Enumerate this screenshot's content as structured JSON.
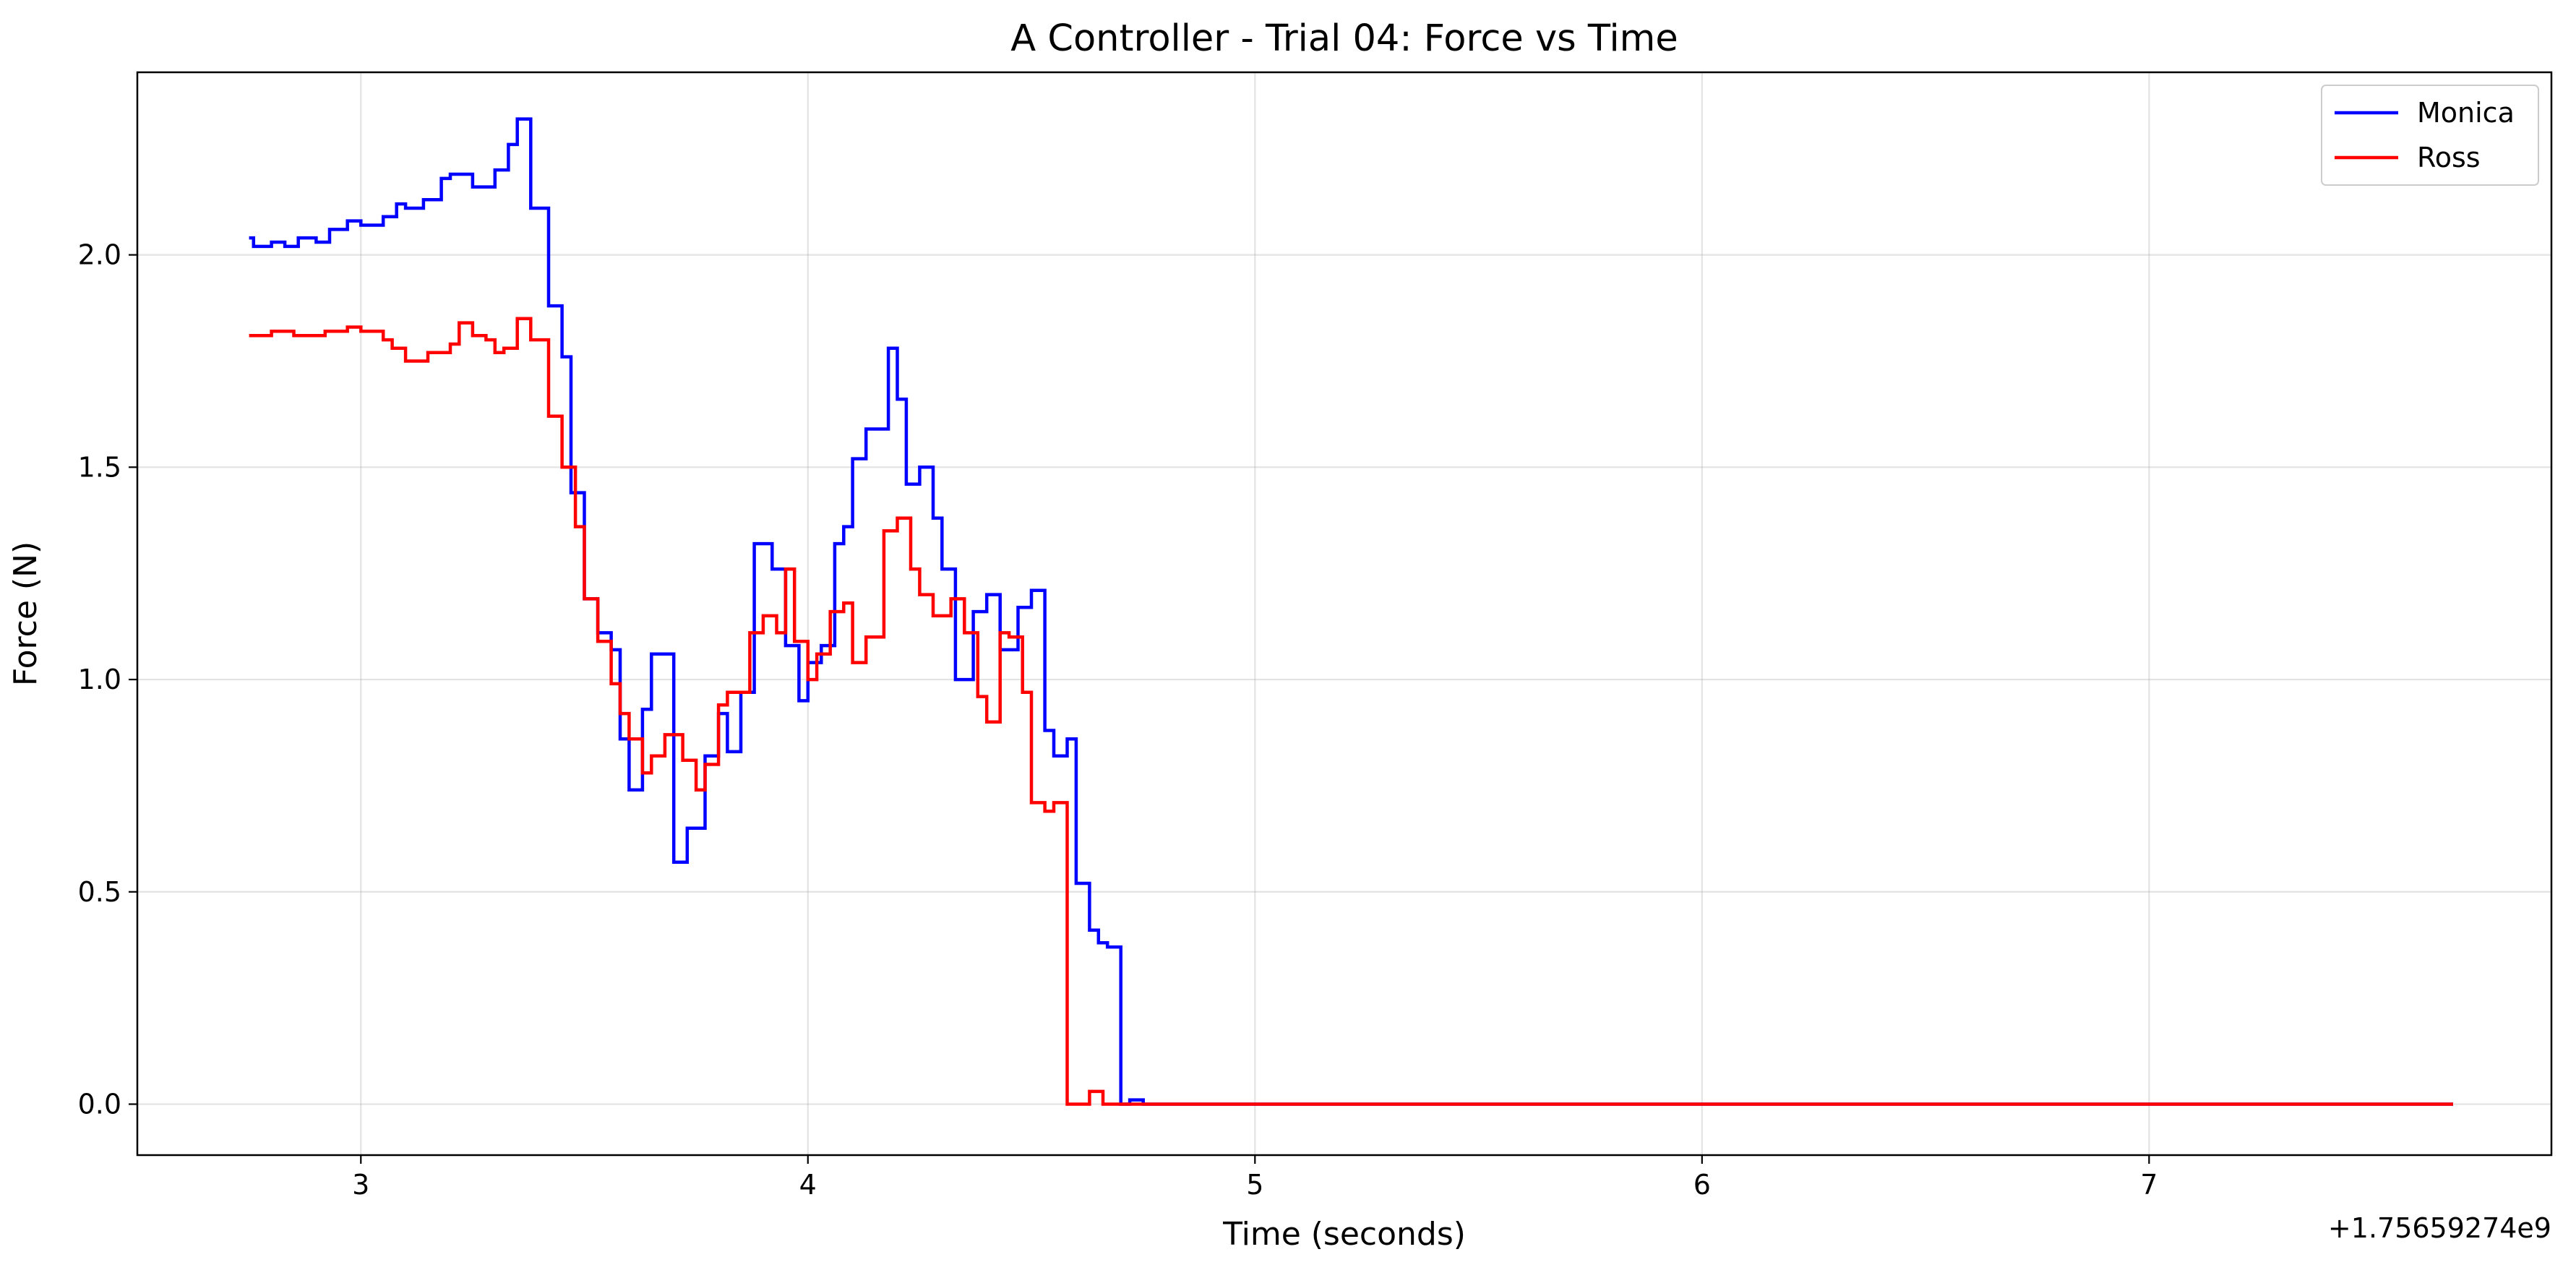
{
  "chart_data": {
    "type": "line",
    "title": "A Controller - Trial 04: Force vs Time",
    "xlabel": "Time (seconds)",
    "ylabel": "Force (N)",
    "x_offset_label": "+1.75659274e9",
    "xlim": [
      2.5,
      7.9
    ],
    "ylim": [
      -0.12,
      2.43
    ],
    "xticks": [
      3,
      4,
      5,
      6,
      7
    ],
    "yticks": [
      0.0,
      0.5,
      1.0,
      1.5,
      2.0
    ],
    "xtick_labels": [
      "3",
      "4",
      "5",
      "6",
      "7"
    ],
    "ytick_labels": [
      "0.0",
      "0.5",
      "1.0",
      "1.5",
      "2.0"
    ],
    "grid": true,
    "legend_position": "top-right",
    "step": "post",
    "series": [
      {
        "name": "Monica",
        "color": "#0000ff",
        "x": [
          2.75,
          2.76,
          2.8,
          2.83,
          2.86,
          2.9,
          2.93,
          2.97,
          3.0,
          3.05,
          3.08,
          3.1,
          3.14,
          3.18,
          3.2,
          3.25,
          3.3,
          3.33,
          3.35,
          3.38,
          3.42,
          3.45,
          3.47,
          3.5,
          3.53,
          3.56,
          3.58,
          3.6,
          3.63,
          3.65,
          3.7,
          3.73,
          3.77,
          3.8,
          3.82,
          3.85,
          3.88,
          3.92,
          3.95,
          3.98,
          4.0,
          4.03,
          4.06,
          4.08,
          4.1,
          4.13,
          4.18,
          4.2,
          4.22,
          4.25,
          4.28,
          4.3,
          4.33,
          4.37,
          4.4,
          4.43,
          4.47,
          4.5,
          4.53,
          4.55,
          4.58,
          4.6,
          4.63,
          4.65,
          4.67,
          4.7,
          4.72,
          4.75,
          4.78,
          4.8,
          4.83,
          4.86,
          4.9,
          4.92,
          5.0,
          5.03,
          7.68
        ],
        "y": [
          2.04,
          2.02,
          2.03,
          2.02,
          2.04,
          2.03,
          2.06,
          2.08,
          2.07,
          2.09,
          2.12,
          2.11,
          2.13,
          2.18,
          2.19,
          2.16,
          2.2,
          2.26,
          2.32,
          2.11,
          1.88,
          1.76,
          1.44,
          1.19,
          1.11,
          1.07,
          0.86,
          0.74,
          0.93,
          1.06,
          0.57,
          0.65,
          0.82,
          0.92,
          0.83,
          0.97,
          1.32,
          1.26,
          1.08,
          0.95,
          1.04,
          1.08,
          1.32,
          1.36,
          1.52,
          1.59,
          1.78,
          1.66,
          1.46,
          1.5,
          1.38,
          1.26,
          1.0,
          1.16,
          1.2,
          1.07,
          1.17,
          1.21,
          0.88,
          0.82,
          0.86,
          0.52,
          0.41,
          0.38,
          0.37,
          0.0,
          0.01,
          0.0,
          0.0,
          0.0,
          0.0,
          0.0,
          0.0,
          0.0,
          0.0,
          0.0,
          0.0
        ]
      },
      {
        "name": "Ross",
        "color": "#ff0000",
        "x": [
          2.75,
          2.78,
          2.8,
          2.85,
          2.88,
          2.92,
          2.97,
          3.0,
          3.05,
          3.07,
          3.1,
          3.15,
          3.2,
          3.22,
          3.25,
          3.28,
          3.3,
          3.32,
          3.35,
          3.38,
          3.42,
          3.45,
          3.48,
          3.5,
          3.53,
          3.56,
          3.58,
          3.6,
          3.63,
          3.65,
          3.68,
          3.72,
          3.75,
          3.77,
          3.8,
          3.82,
          3.87,
          3.9,
          3.93,
          3.95,
          3.97,
          4.0,
          4.02,
          4.05,
          4.08,
          4.1,
          4.13,
          4.17,
          4.2,
          4.23,
          4.25,
          4.28,
          4.32,
          4.35,
          4.38,
          4.4,
          4.43,
          4.45,
          4.48,
          4.5,
          4.53,
          4.55,
          4.58,
          4.6,
          4.63,
          4.66,
          4.68,
          4.7,
          4.73,
          4.75,
          4.77,
          4.8,
          4.82,
          4.9,
          4.93,
          7.68
        ],
        "y": [
          1.81,
          1.81,
          1.82,
          1.81,
          1.81,
          1.82,
          1.83,
          1.82,
          1.8,
          1.78,
          1.75,
          1.77,
          1.79,
          1.84,
          1.81,
          1.8,
          1.77,
          1.78,
          1.85,
          1.8,
          1.62,
          1.5,
          1.36,
          1.19,
          1.09,
          0.99,
          0.92,
          0.86,
          0.78,
          0.82,
          0.87,
          0.81,
          0.74,
          0.8,
          0.94,
          0.97,
          1.11,
          1.15,
          1.11,
          1.26,
          1.09,
          1.0,
          1.06,
          1.16,
          1.18,
          1.04,
          1.1,
          1.35,
          1.38,
          1.26,
          1.2,
          1.15,
          1.19,
          1.11,
          0.96,
          0.9,
          1.11,
          1.1,
          0.97,
          0.71,
          0.69,
          0.71,
          0.0,
          0.0,
          0.03,
          0.0,
          0.0,
          0.0,
          0.0,
          0.0,
          0.0,
          0.0,
          0.0,
          0.0,
          0.0,
          0.0
        ]
      }
    ]
  }
}
